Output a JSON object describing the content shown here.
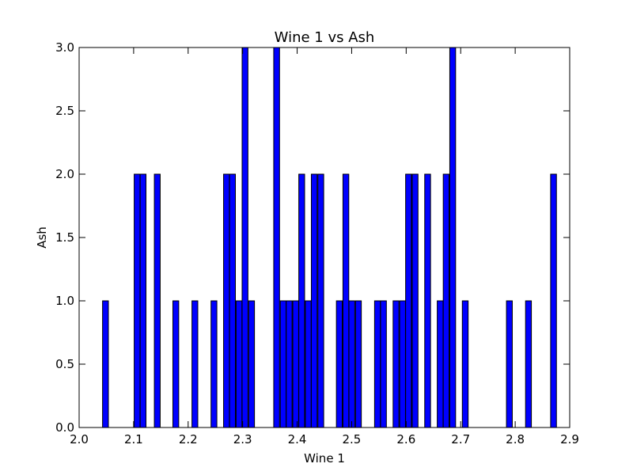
{
  "chart_data": {
    "type": "bar",
    "title": "Wine 1 vs Ash",
    "xlabel": "Wine 1",
    "ylabel": "Ash",
    "xlim": [
      2.0,
      2.9
    ],
    "ylim": [
      0.0,
      3.0
    ],
    "xticks": [
      "2.0",
      "2.1",
      "2.2",
      "2.3",
      "2.4",
      "2.5",
      "2.6",
      "2.7",
      "2.8",
      "2.9"
    ],
    "yticks": [
      "0.0",
      "0.5",
      "1.0",
      "1.5",
      "2.0",
      "2.5",
      "3.0"
    ],
    "bar_width": 0.0107,
    "grid": false,
    "bar_color": "#0000ff",
    "bars": [
      {
        "x": 2.043,
        "y": 1
      },
      {
        "x": 2.101,
        "y": 2
      },
      {
        "x": 2.112,
        "y": 2
      },
      {
        "x": 2.138,
        "y": 2
      },
      {
        "x": 2.172,
        "y": 1
      },
      {
        "x": 2.207,
        "y": 1
      },
      {
        "x": 2.242,
        "y": 1
      },
      {
        "x": 2.265,
        "y": 2
      },
      {
        "x": 2.276,
        "y": 2
      },
      {
        "x": 2.288,
        "y": 1
      },
      {
        "x": 2.299,
        "y": 3
      },
      {
        "x": 2.311,
        "y": 1
      },
      {
        "x": 2.357,
        "y": 3
      },
      {
        "x": 2.369,
        "y": 1
      },
      {
        "x": 2.38,
        "y": 1
      },
      {
        "x": 2.392,
        "y": 1
      },
      {
        "x": 2.403,
        "y": 2
      },
      {
        "x": 2.415,
        "y": 1
      },
      {
        "x": 2.426,
        "y": 2
      },
      {
        "x": 2.438,
        "y": 2
      },
      {
        "x": 2.472,
        "y": 1
      },
      {
        "x": 2.484,
        "y": 2
      },
      {
        "x": 2.495,
        "y": 1
      },
      {
        "x": 2.507,
        "y": 1
      },
      {
        "x": 2.542,
        "y": 1
      },
      {
        "x": 2.553,
        "y": 1
      },
      {
        "x": 2.576,
        "y": 1
      },
      {
        "x": 2.588,
        "y": 1
      },
      {
        "x": 2.599,
        "y": 2
      },
      {
        "x": 2.611,
        "y": 2
      },
      {
        "x": 2.634,
        "y": 2
      },
      {
        "x": 2.657,
        "y": 1
      },
      {
        "x": 2.668,
        "y": 2
      },
      {
        "x": 2.68,
        "y": 3
      },
      {
        "x": 2.703,
        "y": 1
      },
      {
        "x": 2.784,
        "y": 1
      },
      {
        "x": 2.819,
        "y": 1
      },
      {
        "x": 2.865,
        "y": 2
      }
    ]
  }
}
